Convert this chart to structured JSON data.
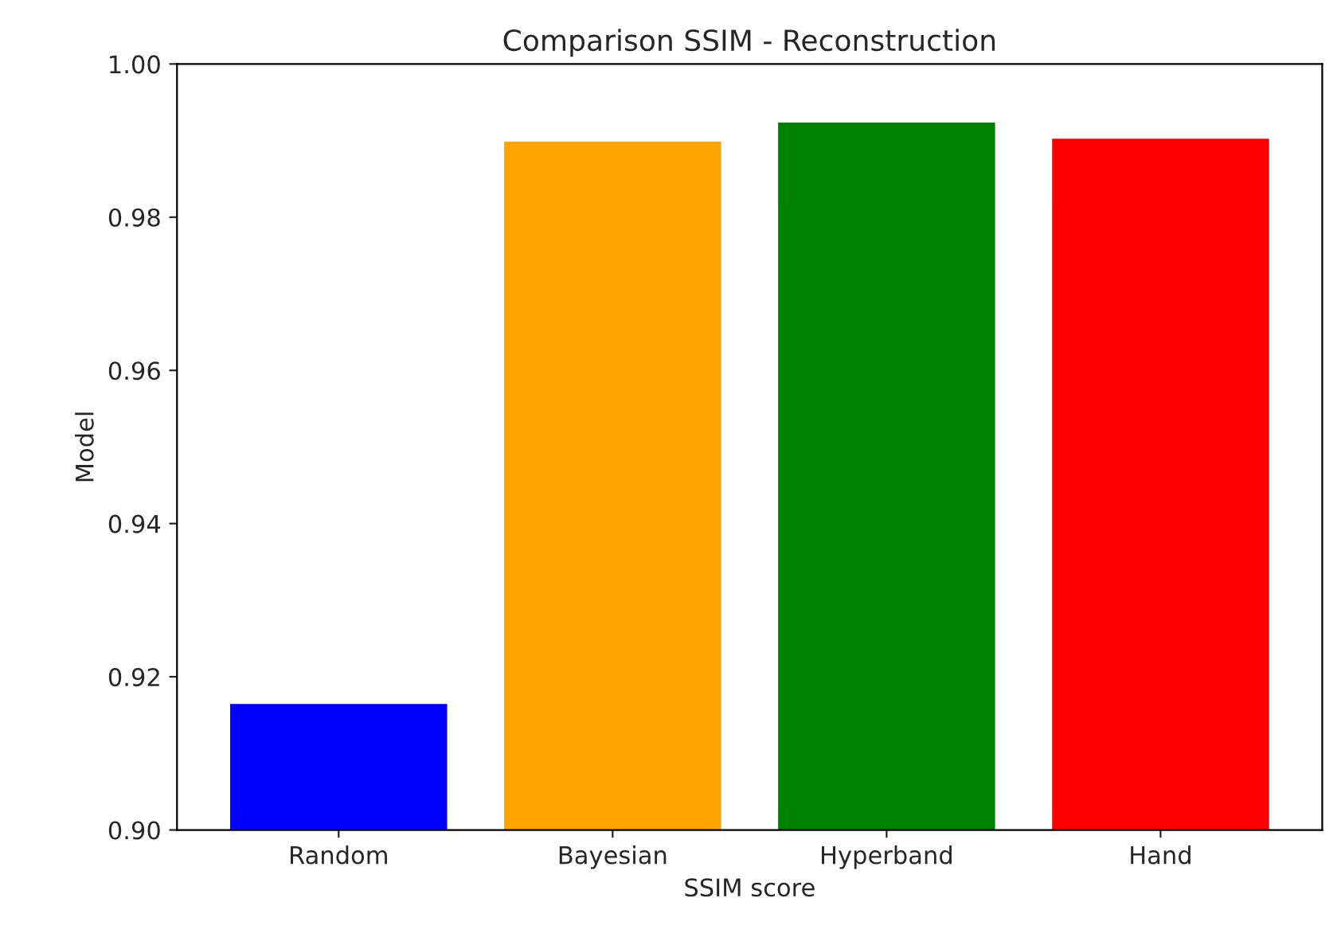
{
  "chart_data": {
    "type": "bar",
    "title": "Comparison SSIM - Reconstruction",
    "xlabel": "SSIM score",
    "ylabel": "Model",
    "categories": [
      "Random",
      "Bayesian",
      "Hyperband",
      "Hand"
    ],
    "values": [
      0.9166,
      0.99,
      0.9925,
      0.9904
    ],
    "colors": [
      "#0000ff",
      "#ffa500",
      "#008000",
      "#ff0000"
    ],
    "ylim": [
      0.9,
      1.0
    ],
    "yticks": [
      {
        "value": 0.9,
        "label": "0.90"
      },
      {
        "value": 0.92,
        "label": "0.92"
      },
      {
        "value": 0.94,
        "label": "0.94"
      },
      {
        "value": 0.96,
        "label": "0.96"
      },
      {
        "value": 0.98,
        "label": "0.98"
      },
      {
        "value": 1.0,
        "label": "1.00"
      }
    ],
    "grid": false
  }
}
